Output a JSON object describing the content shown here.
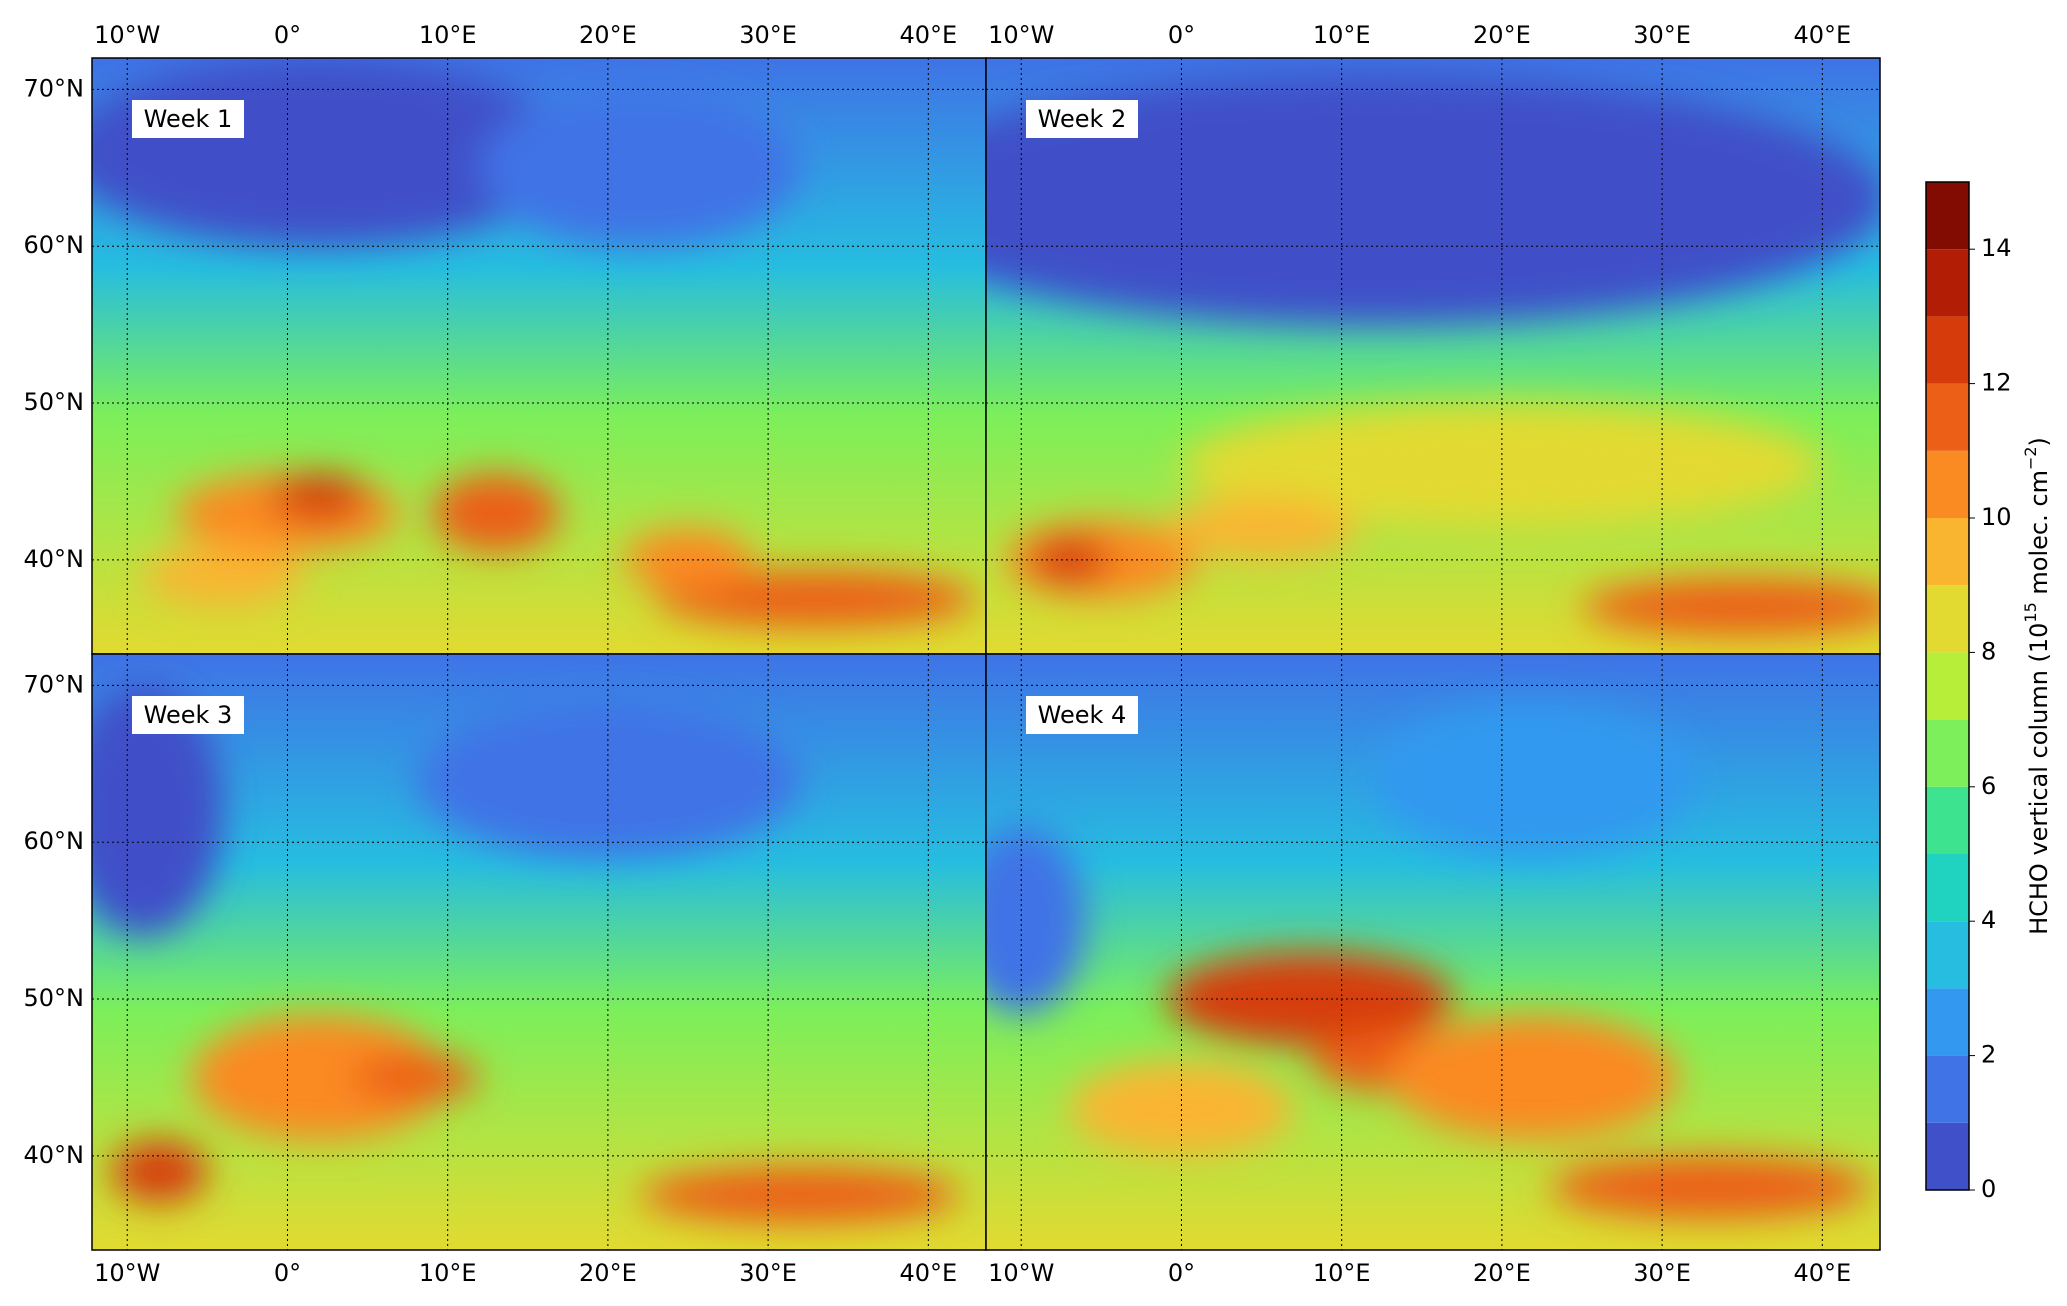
{
  "map": {
    "panels": [
      {
        "label": "Week 1"
      },
      {
        "label": "Week 2"
      },
      {
        "label": "Week 3"
      },
      {
        "label": "Week 4"
      }
    ],
    "xlim": [
      -12.2,
      43.6
    ],
    "ylim": [
      34,
      72
    ],
    "xticks": [
      {
        "value": -10,
        "label": "10°W"
      },
      {
        "value": 0,
        "label": "0°"
      },
      {
        "value": 10,
        "label": "10°E"
      },
      {
        "value": 20,
        "label": "20°E"
      },
      {
        "value": 30,
        "label": "30°E"
      },
      {
        "value": 40,
        "label": "40°E"
      }
    ],
    "yticks": [
      {
        "value": 40,
        "label": "40°N"
      },
      {
        "value": 50,
        "label": "50°N"
      },
      {
        "value": 60,
        "label": "60°N"
      },
      {
        "value": 70,
        "label": "70°N"
      }
    ],
    "grid": true,
    "colorbar": {
      "label": {
        "prefix": "HCHO vertical column (10",
        "exp1": "15",
        "mid": " molec. cm",
        "exp2": "−2",
        "suffix": ")"
      },
      "levels": [
        0,
        1,
        2,
        3,
        4,
        5,
        6,
        7,
        8,
        9,
        10,
        11,
        12,
        13,
        14,
        15
      ],
      "colors": [
        "#4050c8",
        "#3f73e6",
        "#3399f0",
        "#26bde0",
        "#1fd3c0",
        "#3de38f",
        "#7cef5a",
        "#b6ee3a",
        "#e2da30",
        "#f9b530",
        "#fa8a22",
        "#ec5f16",
        "#d63c0b",
        "#b11d05",
        "#820c02"
      ],
      "ticks": [
        0,
        2,
        4,
        6,
        8,
        10,
        12,
        14
      ]
    }
  }
}
